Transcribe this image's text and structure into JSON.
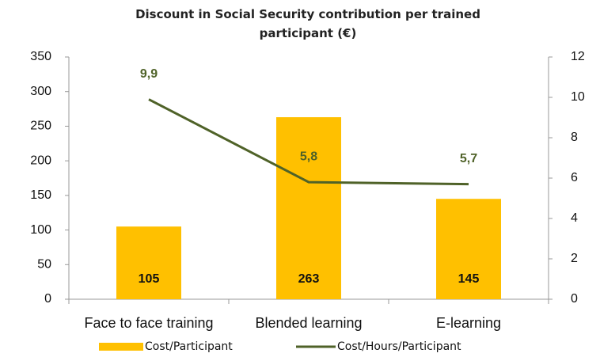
{
  "chart_data": {
    "type": "bar",
    "title": "Discount in Social Security contribution per trained participant (€)",
    "categories": [
      "Face to face training",
      "Blended learning",
      "E-learning"
    ],
    "series": [
      {
        "name": "Cost/Participant",
        "color": "#ffc000",
        "values": [
          105,
          263,
          145
        ]
      },
      {
        "name": "Cost/Hours/Participant",
        "color": "#4f6228",
        "type": "line",
        "axis": "y2",
        "values": [
          9.9,
          5.8,
          5.7
        ],
        "value_labels": [
          "9,9",
          "5,8",
          "5,7"
        ]
      }
    ],
    "ylim": [
      0,
      350
    ],
    "yticks": [
      0,
      50,
      100,
      150,
      200,
      250,
      300,
      350
    ],
    "y2lim": [
      0,
      12
    ],
    "y2ticks": [
      0,
      2,
      4,
      6,
      8,
      10,
      12
    ],
    "legend": "bottom"
  }
}
